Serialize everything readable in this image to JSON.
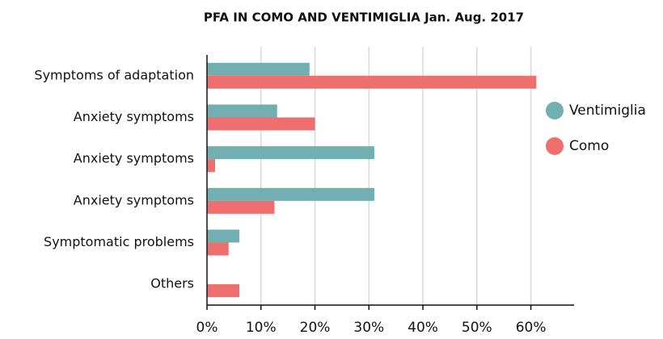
{
  "chart_data": {
    "type": "hbar",
    "title": "PFA IN COMO AND VENTIMIGLIA Jan. Aug. 2017",
    "categories": [
      "Symptoms of adaptation",
      "Anxiety symptoms",
      "Anxiety symptoms",
      "Anxiety symptoms",
      "Symptomatic problems",
      "Others"
    ],
    "series": [
      {
        "name": "Ventimiglia",
        "color": "#72afb1",
        "values": [
          19,
          13,
          31,
          31,
          6,
          0
        ]
      },
      {
        "name": "Como",
        "color": "#ef6e6e",
        "values": [
          61,
          20,
          1.5,
          12.5,
          4,
          6
        ]
      }
    ],
    "xlim": [
      0,
      68
    ],
    "xticks": [
      {
        "value": 0,
        "label": "0%"
      },
      {
        "value": 10,
        "label": "10%"
      },
      {
        "value": 20,
        "label": "20%"
      },
      {
        "value": 30,
        "label": "30%"
      },
      {
        "value": 40,
        "label": "40%"
      },
      {
        "value": 50,
        "label": "50%"
      },
      {
        "value": 60,
        "label": "60%"
      }
    ],
    "grid": true,
    "legend": "right"
  }
}
